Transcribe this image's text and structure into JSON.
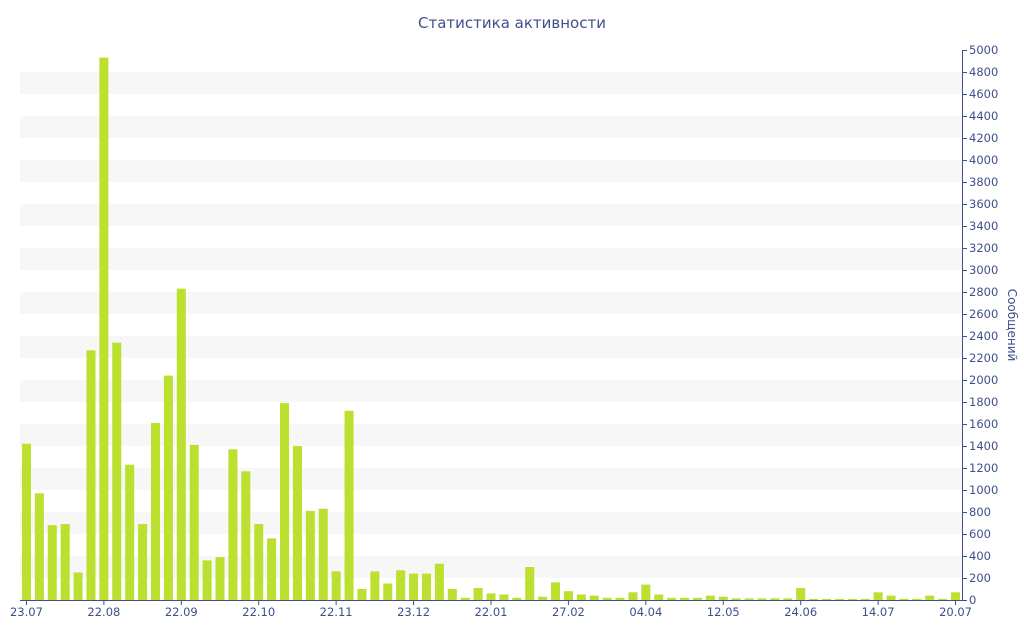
{
  "chart_data": {
    "type": "bar",
    "title": "Статистика активности",
    "ylabel": "Сообщений",
    "xlabel": "",
    "ylim": [
      0,
      5000
    ],
    "ytick_step": 200,
    "grid": "alternating horizontal bands",
    "bar_color": "#bbe02f",
    "band_color": "#f7f7f7",
    "axis_text_color": "#3f4f8a",
    "x_tick_labels": [
      {
        "label": "23.07",
        "index": 0
      },
      {
        "label": "22.08",
        "index": 6
      },
      {
        "label": "22.09",
        "index": 12
      },
      {
        "label": "22.10",
        "index": 18
      },
      {
        "label": "22.11",
        "index": 24
      },
      {
        "label": "23.12",
        "index": 30
      },
      {
        "label": "22.01",
        "index": 36
      },
      {
        "label": "27.02",
        "index": 42
      },
      {
        "label": "04.04",
        "index": 48
      },
      {
        "label": "12.05",
        "index": 54
      },
      {
        "label": "24.06",
        "index": 60
      },
      {
        "label": "14.07",
        "index": 66
      },
      {
        "label": "20.07",
        "index": 72
      }
    ],
    "values": [
      1420,
      970,
      680,
      690,
      250,
      2270,
      4930,
      2340,
      1230,
      690,
      1610,
      2040,
      2830,
      1410,
      360,
      390,
      1370,
      1170,
      690,
      560,
      1790,
      1400,
      810,
      830,
      260,
      1720,
      100,
      260,
      150,
      270,
      240,
      240,
      330,
      100,
      20,
      110,
      60,
      50,
      20,
      300,
      30,
      160,
      80,
      50,
      40,
      20,
      20,
      70,
      140,
      50,
      20,
      20,
      20,
      40,
      30,
      15,
      15,
      15,
      15,
      15,
      110,
      10,
      10,
      10,
      10,
      10,
      70,
      40,
      10,
      10,
      40,
      10,
      70
    ]
  }
}
